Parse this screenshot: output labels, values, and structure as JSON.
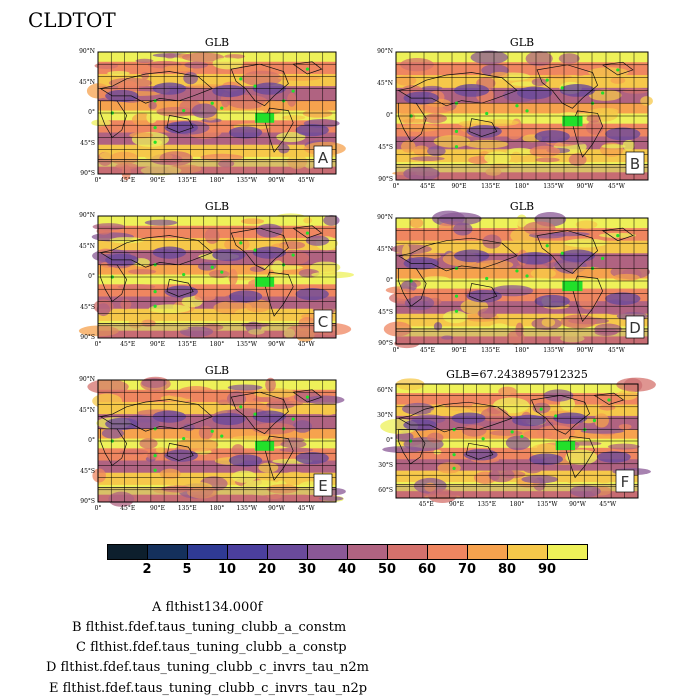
{
  "title": "CLDTOT",
  "panels": [
    {
      "label": "A",
      "title": "GLB"
    },
    {
      "label": "B",
      "title": "GLB"
    },
    {
      "label": "C",
      "title": "GLB"
    },
    {
      "label": "D",
      "title": "GLB"
    },
    {
      "label": "E",
      "title": "GLB"
    },
    {
      "label": "F",
      "title": "GLB=67.2438957912325"
    }
  ],
  "lat_ticks_full": [
    "90°N",
    "45°N",
    "0°",
    "45°S",
    "90°S"
  ],
  "lat_ticks_zoom": [
    "60°N",
    "30°N",
    "0°",
    "30°S",
    "60°S"
  ],
  "lon_ticks_full": [
    "0°",
    "45°E",
    "90°E",
    "135°E",
    "180°",
    "135°W",
    "90°W",
    "45°W"
  ],
  "lon_ticks_zoom": [
    "45°E",
    "90°E",
    "135°E",
    "180°",
    "135°W",
    "90°W",
    "45°W"
  ],
  "colorbar": {
    "levels": [
      "2",
      "5",
      "10",
      "20",
      "30",
      "40",
      "50",
      "60",
      "70",
      "80",
      "90"
    ],
    "colors": [
      "#0d1f2d",
      "#14305c",
      "#2f3a94",
      "#4b3f9e",
      "#6a4a9b",
      "#8a5896",
      "#b06381",
      "#d4716c",
      "#ef8660",
      "#f6a24e",
      "#f6c84a",
      "#eef159"
    ]
  },
  "legend": [
    "A  flthist134.000f",
    "B  flthist.fdef.taus_tuning_clubb_a_constm",
    "C  flthist.fdef.taus_tuning_clubb_a_constp",
    "D  flthist.fdef.taus_tuning_clubb_c_invrs_tau_n2m",
    "E  flthist.fdef.taus_tuning_clubb_c_invrs_tau_n2p"
  ],
  "chart_data": {
    "type": "heatmap",
    "variable": "CLDTOT",
    "global_mean_F": 67.2438957912325,
    "colorbar_levels": [
      2,
      5,
      10,
      20,
      30,
      40,
      50,
      60,
      70,
      80,
      90
    ],
    "panels": [
      "A",
      "B",
      "C",
      "D",
      "E",
      "F"
    ]
  }
}
